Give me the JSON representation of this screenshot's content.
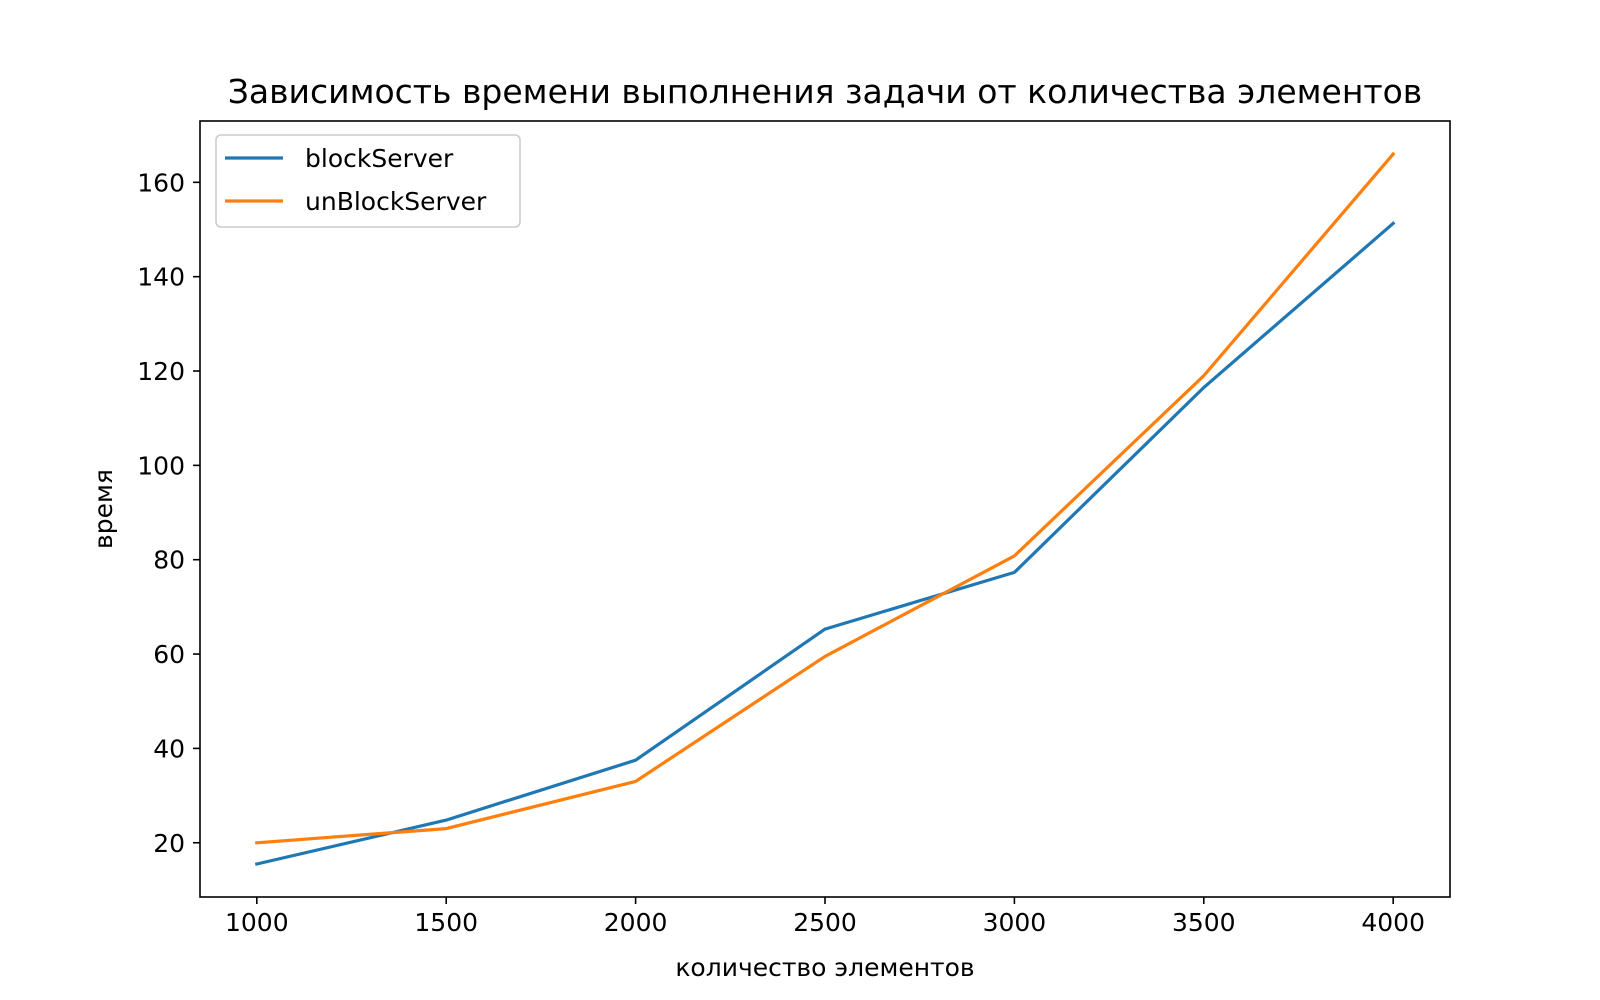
{
  "chart_data": {
    "type": "line",
    "title": "Зависимость времени выполнения задачи от количества элементов",
    "xlabel": "количество элементов",
    "ylabel": "время",
    "x": [
      1000,
      1500,
      2000,
      2500,
      3000,
      3500,
      4000
    ],
    "xlim": [
      850,
      4150
    ],
    "ylim": [
      8.5,
      173
    ],
    "xticks": [
      "1000",
      "1500",
      "2000",
      "2500",
      "3000",
      "3500",
      "4000"
    ],
    "yticks": [
      "20",
      "40",
      "60",
      "80",
      "100",
      "120",
      "140",
      "160"
    ],
    "grid": false,
    "legend_position": "top-left",
    "series": [
      {
        "name": "blockServer",
        "color": "#1f77b4",
        "values": [
          15.5,
          24.8,
          37.5,
          65.3,
          77.3,
          116.5,
          151.3
        ]
      },
      {
        "name": "unBlockServer",
        "color": "#ff7f0e",
        "values": [
          20.0,
          23.0,
          33.0,
          59.5,
          80.8,
          119.0,
          166.0
        ]
      }
    ]
  }
}
